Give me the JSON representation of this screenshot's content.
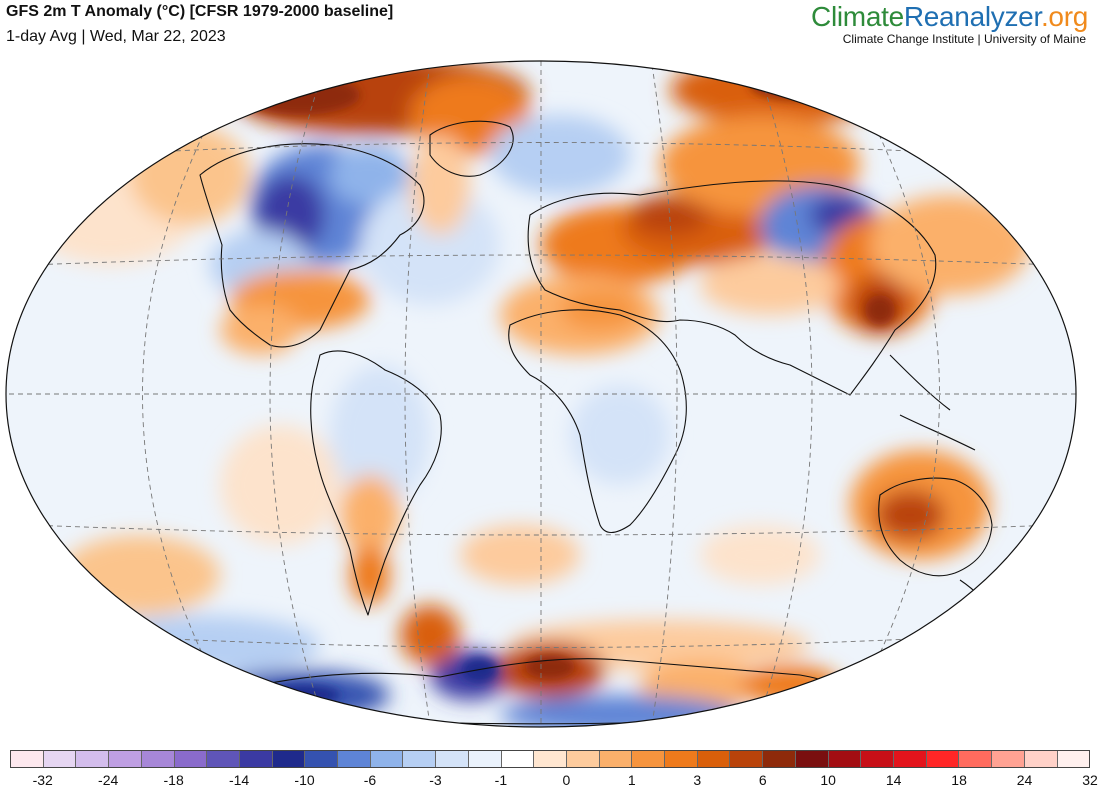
{
  "header": {
    "title": "GFS 2m T Anomaly (°C) [CFSR 1979-2000 baseline]",
    "subtitle": "1-day Avg | Wed, Mar 22, 2023"
  },
  "brand": {
    "name_part1": "Climate",
    "name_part2": "Reanalyzer",
    "name_part3": ".org",
    "credit": "Climate Change Institute | University of Maine",
    "colors": {
      "part1": "#2e8b3a",
      "part2": "#1f6fb2",
      "part3": "#f08a1c"
    }
  },
  "map": {
    "projection": "Winkel-Tripel-like elliptical world map",
    "graticule": "dashed",
    "ocean_base_color": "#eef4fb"
  },
  "colorbar": {
    "colors": [
      "#fde8ee",
      "#e6d6f2",
      "#d3bdec",
      "#bf9fe3",
      "#a787d8",
      "#8a6bcc",
      "#5f55b8",
      "#3b3aa3",
      "#1f2a8c",
      "#3552b0",
      "#5e84d6",
      "#8fb3ea",
      "#b6cff3",
      "#d4e3f8",
      "#eaf2fc",
      "#ffffff",
      "#ffe6d0",
      "#fdcb9d",
      "#fbb06b",
      "#f6943e",
      "#ee7a1c",
      "#d95f0a",
      "#b9430a",
      "#8e2a0a",
      "#7a0f0f",
      "#a30d12",
      "#c70f17",
      "#e3141c",
      "#ff2626",
      "#ff6b5e",
      "#ffa293",
      "#ffd1c8",
      "#fff0ee"
    ],
    "tick_labels": [
      "-32",
      "-24",
      "-18",
      "-14",
      "-10",
      "-6",
      "-3",
      "-1",
      "0",
      "1",
      "3",
      "6",
      "10",
      "14",
      "18",
      "24",
      "32"
    ]
  }
}
